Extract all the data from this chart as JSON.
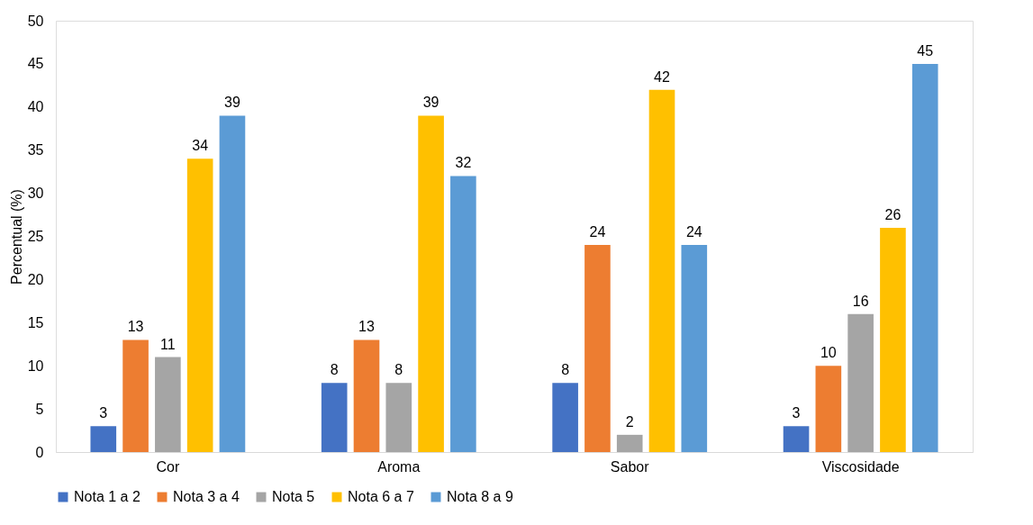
{
  "chart_data": {
    "type": "bar",
    "ylabel": "Percentual (%)",
    "categories": [
      "Cor",
      "Aroma",
      "Sabor",
      "Viscosidade"
    ],
    "series": [
      {
        "name": "Nota 1 a 2",
        "color": "#4472c4",
        "values": [
          3,
          8,
          8,
          3
        ]
      },
      {
        "name": "Nota 3 a 4",
        "color": "#ed7d31",
        "values": [
          13,
          13,
          24,
          10
        ]
      },
      {
        "name": "Nota 5",
        "color": "#a5a5a5",
        "values": [
          11,
          8,
          2,
          16
        ]
      },
      {
        "name": "Nota 6 a 7",
        "color": "#ffc000",
        "values": [
          34,
          39,
          42,
          26
        ]
      },
      {
        "name": "Nota 8 a 9",
        "color": "#5b9bd5",
        "values": [
          39,
          32,
          24,
          45
        ]
      }
    ],
    "ylim": [
      0,
      50
    ],
    "yticks": [
      0,
      5,
      10,
      15,
      20,
      25,
      30,
      35,
      40,
      45,
      50
    ],
    "data_labels": true,
    "grid": false,
    "legend": "bottom"
  }
}
